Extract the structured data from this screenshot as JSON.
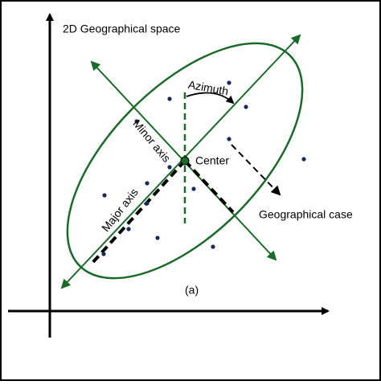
{
  "title": "2D Geographical space",
  "labels": {
    "azimuth": "Azimuth",
    "minor_axis": "Minor axis",
    "major_axis": "Major axis",
    "center": "Center",
    "geographical_case": "Geographical case",
    "panel": "(a)"
  }
}
